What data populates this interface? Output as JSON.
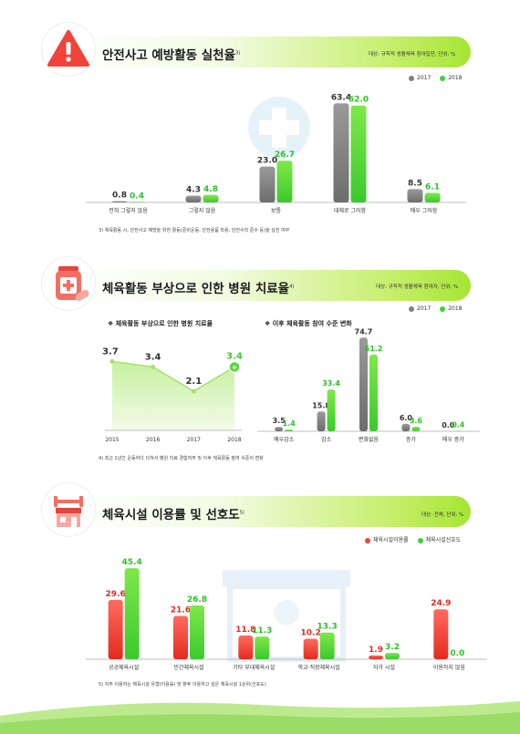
{
  "colors": {
    "accent": "#5bd53a",
    "gray": "#7f7f7f",
    "red": "#f2433a",
    "green": "#3bd23a",
    "header": "#a6e533"
  },
  "legend": {
    "y2017": "2017",
    "y2018": "2018",
    "usage": "체육시설이용률",
    "preference": "체육시설선호도"
  },
  "section1": {
    "title": "안전사고 예방활동 실천율",
    "sup": "3)",
    "unit": "대상: 규칙적 생활체육 참여집단, 단위: %",
    "icon": "warning-icon",
    "note": "3) 체육활동 시, 안전사고 예방을 위한 활동(준비운동, 안전용품 착용, 안전수칙 준수 등)을 실천 여부"
  },
  "section2": {
    "title": "체육활동 부상으로 인한 병원 치료율",
    "sup": "4)",
    "unit": "대상: 규칙적 생활체육 참여자, 단위: %",
    "icon": "medicine-icon",
    "left_title": "❖ 체육활동 부상으로 인한 병원 치료율",
    "right_title": "❖ 이후 체육활동 참여 수준 변화",
    "note": "4) 최근 1년간 운동하다 다쳐서 병원 치료 경험여부 및 이후 체육활동 참여 수준의 변화"
  },
  "section3": {
    "title": "체육시설 이용률 및 선호도",
    "sup": "5)",
    "unit": "대상: 전체, 단위: %",
    "icon": "gym-icon",
    "note": "5) 자주 이용하는 체육시설 유형(이용률) 및 향후 이용하고 싶은 체육시설 1순위(선호도)"
  },
  "chart_data": [
    {
      "type": "bar",
      "categories": [
        "전혀 그렇지 않음",
        "그렇지 않음",
        "보통",
        "대체로 그러함",
        "매우 그러함"
      ],
      "series": [
        {
          "name": "2017",
          "values": [
            0.8,
            4.3,
            23.0,
            63.4,
            8.5
          ]
        },
        {
          "name": "2018",
          "values": [
            0.4,
            4.8,
            26.7,
            62.0,
            6.1
          ]
        }
      ],
      "labels": [
        [
          "0.8",
          "0.4"
        ],
        [
          "4.3",
          "4.8"
        ],
        [
          "23.0",
          "26.7"
        ],
        [
          "63.4",
          "62.0"
        ],
        [
          "8.5",
          "6.1"
        ]
      ],
      "ylim": [
        0,
        70
      ]
    },
    {
      "type": "line",
      "x": [
        "2015",
        "2016",
        "2017",
        "2018"
      ],
      "values": [
        3.7,
        3.4,
        2.1,
        3.4
      ],
      "labels": [
        "3.7",
        "3.4",
        "2.1",
        "3.4"
      ],
      "ylim": [
        0,
        4.5
      ]
    },
    {
      "type": "bar",
      "categories": [
        "매우감소",
        "감소",
        "변화없음",
        "증가",
        "매우 증가"
      ],
      "series": [
        {
          "name": "2017",
          "values": [
            3.5,
            15.8,
            74.7,
            6.0,
            0.0
          ]
        },
        {
          "name": "2018",
          "values": [
            1.4,
            33.4,
            61.2,
            3.6,
            0.4
          ]
        }
      ],
      "labels": [
        [
          "3.5",
          "1.4"
        ],
        [
          "15.8",
          "33.4"
        ],
        [
          "74.7",
          "61.2"
        ],
        [
          "6.0",
          "3.6"
        ],
        [
          "0.0",
          "0.4"
        ]
      ],
      "ylim": [
        0,
        80
      ]
    },
    {
      "type": "bar",
      "categories": [
        "공공체육시설",
        "민간체육시설",
        "기타 부대체육시설",
        "학교·직장체육시설",
        "자가 시설",
        "이용하지 않음"
      ],
      "series": [
        {
          "name": "체육시설이용률",
          "values": [
            29.6,
            21.6,
            11.8,
            10.2,
            1.9,
            24.9
          ]
        },
        {
          "name": "체육시설선호도",
          "values": [
            45.4,
            26.8,
            11.3,
            13.3,
            3.2,
            0.0
          ]
        }
      ],
      "labels": [
        [
          "29.6",
          "45.4"
        ],
        [
          "21.6",
          "26.8"
        ],
        [
          "11.8",
          "11.3"
        ],
        [
          "10.2",
          "13.3"
        ],
        [
          "1.9",
          "3.2"
        ],
        [
          "24.9",
          "0.0"
        ]
      ],
      "ylim": [
        0,
        50
      ]
    }
  ]
}
